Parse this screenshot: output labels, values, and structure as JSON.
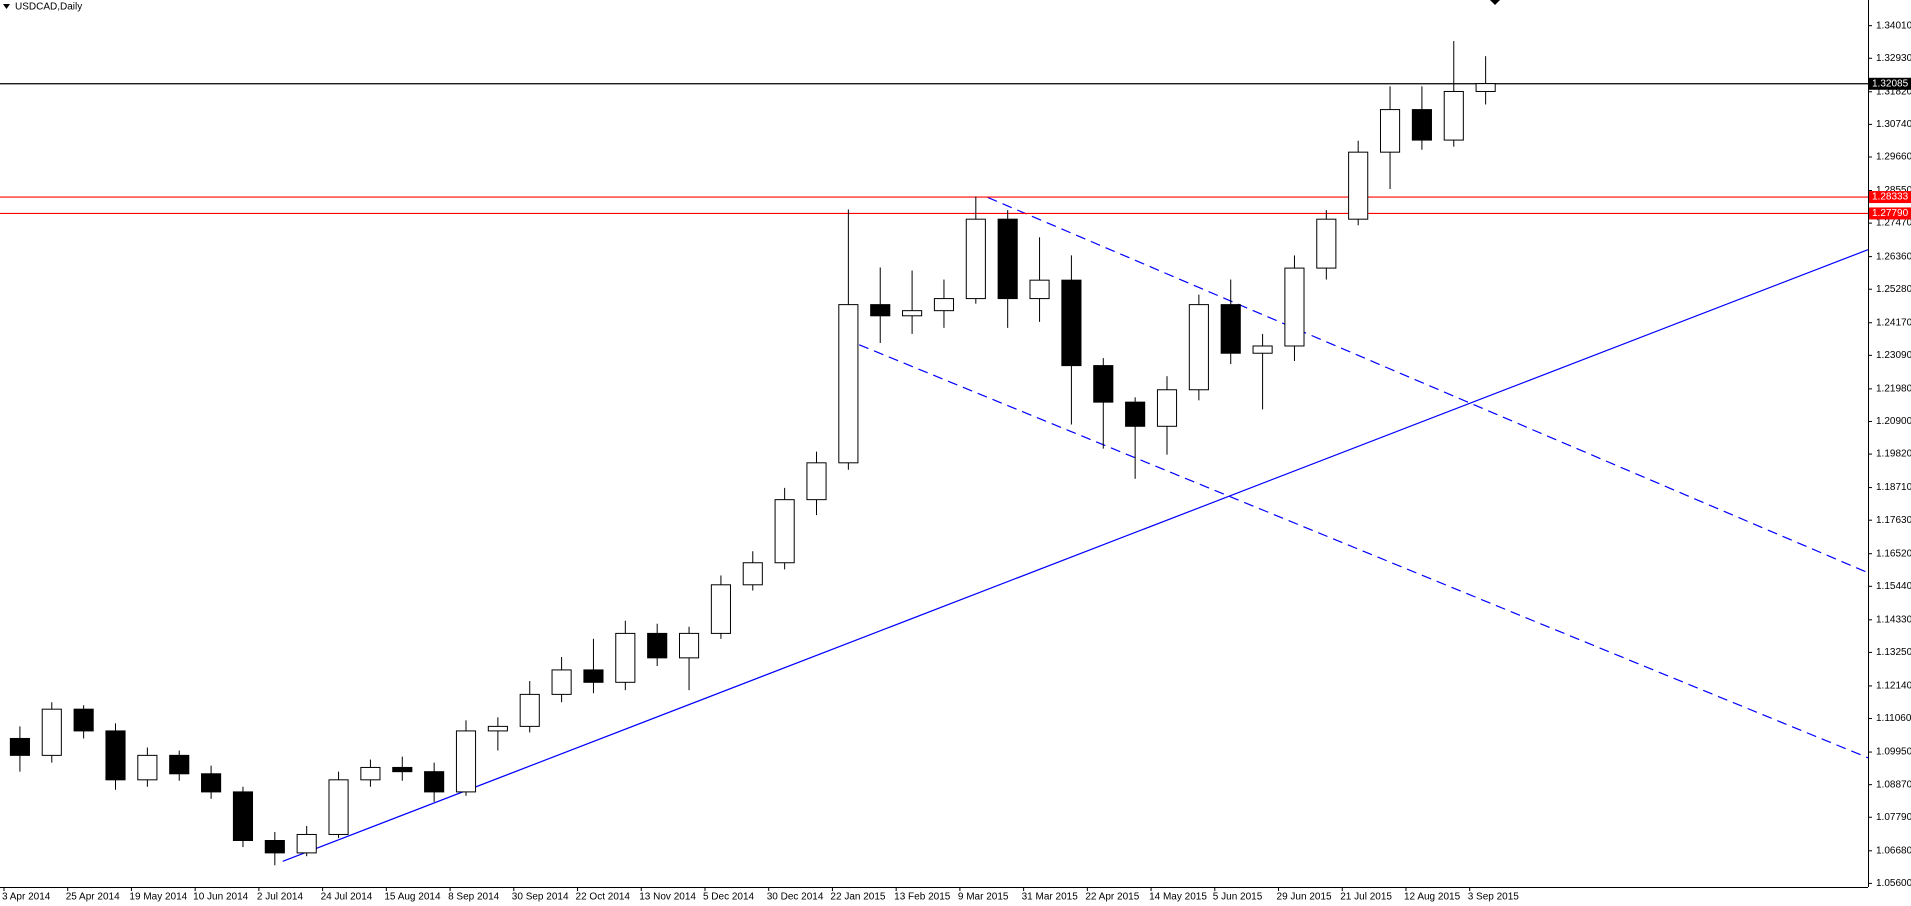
{
  "chart_data": {
    "type": "candlestick",
    "title": "USDCAD,Daily",
    "x": [
      4,
      12,
      20,
      28,
      36,
      44,
      52,
      60,
      68,
      76,
      84,
      92,
      100,
      108,
      116,
      124,
      132,
      140,
      148,
      156,
      164,
      172,
      180,
      188,
      196,
      204,
      212,
      220,
      228,
      236,
      244,
      252,
      260,
      268,
      276,
      284,
      292,
      300,
      308,
      316,
      324,
      332,
      340,
      348,
      356,
      364,
      372
    ],
    "open": [
      1.104,
      1.0984,
      1.1137,
      1.1065,
      1.0903,
      1.0984,
      1.0923,
      1.0863,
      1.0702,
      1.0661,
      1.0722,
      1.0903,
      1.0944,
      1.093,
      1.0863,
      1.1065,
      1.108,
      1.1186,
      1.1267,
      1.1226,
      1.1388,
      1.1307,
      1.1388,
      1.1549,
      1.1622,
      1.1831,
      1.1953,
      1.2477,
      1.244,
      1.2457,
      1.2497,
      1.276,
      1.2497,
      1.2558,
      1.2275,
      1.2154,
      1.2074,
      1.2195,
      1.2477,
      1.2316,
      1.234,
      1.2598,
      1.276,
      1.2982,
      1.3123,
      1.3022,
      1.3183
    ],
    "high": [
      1.108,
      1.116,
      1.115,
      1.109,
      1.101,
      1.1,
      1.095,
      1.088,
      1.073,
      1.075,
      1.093,
      1.097,
      1.098,
      1.096,
      1.11,
      1.111,
      1.123,
      1.131,
      1.137,
      1.143,
      1.142,
      1.141,
      1.158,
      1.166,
      1.187,
      1.199,
      1.2792,
      1.26,
      1.259,
      1.256,
      1.2835,
      1.279,
      1.27,
      1.264,
      1.23,
      1.217,
      1.224,
      1.251,
      1.256,
      1.238,
      1.264,
      1.279,
      1.302,
      1.32,
      1.32,
      1.335,
      1.33
    ],
    "low": [
      1.093,
      1.096,
      1.104,
      1.087,
      1.088,
      1.09,
      1.084,
      1.068,
      1.062,
      1.065,
      1.071,
      1.088,
      1.09,
      1.083,
      1.085,
      1.1,
      1.106,
      1.116,
      1.119,
      1.12,
      1.128,
      1.12,
      1.137,
      1.153,
      1.16,
      1.178,
      1.193,
      1.235,
      1.238,
      1.24,
      1.248,
      1.24,
      1.242,
      1.208,
      1.2,
      1.19,
      1.198,
      1.216,
      1.228,
      1.213,
      1.229,
      1.256,
      1.274,
      1.286,
      1.299,
      1.3,
      1.314
    ],
    "close": [
      1.0984,
      1.1137,
      1.1065,
      1.0903,
      1.0984,
      1.0923,
      1.0863,
      1.0702,
      1.0661,
      1.0722,
      1.0903,
      1.0944,
      1.093,
      1.0863,
      1.1065,
      1.108,
      1.1186,
      1.1267,
      1.1226,
      1.1388,
      1.1307,
      1.1388,
      1.1549,
      1.1622,
      1.1831,
      1.1953,
      1.2477,
      1.244,
      1.2457,
      1.2497,
      1.276,
      1.2497,
      1.2558,
      1.2275,
      1.2154,
      1.2074,
      1.2195,
      1.2477,
      1.2316,
      1.234,
      1.2598,
      1.276,
      1.2982,
      1.3123,
      1.3022,
      1.3183,
      1.3209
    ],
    "up_color": "#ffffff",
    "down_color": "#000000",
    "wick_color": "#000000",
    "xlim": [
      -1,
      468
    ],
    "xticks": [
      {
        "value": 0,
        "label": "3 Apr 2014"
      },
      {
        "value": 16,
        "label": "25 Apr 2014"
      },
      {
        "value": 32,
        "label": "19 May 2014"
      },
      {
        "value": 48,
        "label": "10 Jun 2014"
      },
      {
        "value": 64,
        "label": "2 Jul 2014"
      },
      {
        "value": 80,
        "label": "24 Jul 2014"
      },
      {
        "value": 96,
        "label": "15 Aug 2014"
      },
      {
        "value": 112,
        "label": "8 Sep 2014"
      },
      {
        "value": 128,
        "label": "30 Sep 2014"
      },
      {
        "value": 144,
        "label": "22 Oct 2014"
      },
      {
        "value": 160,
        "label": "13 Nov 2014"
      },
      {
        "value": 176,
        "label": "5 Dec 2014"
      },
      {
        "value": 192,
        "label": "30 Dec 2014"
      },
      {
        "value": 208,
        "label": "22 Jan 2015"
      },
      {
        "value": 224,
        "label": "13 Feb 2015"
      },
      {
        "value": 240,
        "label": "9 Mar 2015"
      },
      {
        "value": 256,
        "label": "31 Mar 2015"
      },
      {
        "value": 272,
        "label": "22 Apr 2015"
      },
      {
        "value": 288,
        "label": "14 May 2015"
      },
      {
        "value": 304,
        "label": "5 Jun 2015"
      },
      {
        "value": 320,
        "label": "29 Jun 2015"
      },
      {
        "value": 336,
        "label": "21 Jul 2015"
      },
      {
        "value": 352,
        "label": "12 Aug 2015"
      },
      {
        "value": 368,
        "label": "3 Sep 2015"
      }
    ],
    "ylim": [
      1.0548,
      1.3486
    ],
    "yticks": [
      {
        "value": 1.3401,
        "label": "1.34010"
      },
      {
        "value": 1.3293,
        "label": "1.32930"
      },
      {
        "value": 1.3182,
        "label": "1.31820"
      },
      {
        "value": 1.3074,
        "label": "1.30740"
      },
      {
        "value": 1.2966,
        "label": "1.29660"
      },
      {
        "value": 1.2855,
        "label": "1.28550"
      },
      {
        "value": 1.2747,
        "label": "1.27470"
      },
      {
        "value": 1.2636,
        "label": "1.26360"
      },
      {
        "value": 1.2528,
        "label": "1.25280"
      },
      {
        "value": 1.2417,
        "label": "1.24170"
      },
      {
        "value": 1.2309,
        "label": "1.23090"
      },
      {
        "value": 1.2198,
        "label": "1.21980"
      },
      {
        "value": 1.209,
        "label": "1.20900"
      },
      {
        "value": 1.1982,
        "label": "1.19820"
      },
      {
        "value": 1.1871,
        "label": "1.18710"
      },
      {
        "value": 1.1763,
        "label": "1.17630"
      },
      {
        "value": 1.1652,
        "label": "1.16520"
      },
      {
        "value": 1.1544,
        "label": "1.15440"
      },
      {
        "value": 1.1433,
        "label": "1.14330"
      },
      {
        "value": 1.1325,
        "label": "1.13250"
      },
      {
        "value": 1.1214,
        "label": "1.12140"
      },
      {
        "value": 1.1106,
        "label": "1.11060"
      },
      {
        "value": 1.0995,
        "label": "1.09950"
      },
      {
        "value": 1.0887,
        "label": "1.08870"
      },
      {
        "value": 1.0779,
        "label": "1.07790"
      },
      {
        "value": 1.0668,
        "label": "1.06680"
      },
      {
        "value": 1.056,
        "label": "1.05600"
      }
    ],
    "levels": [
      {
        "price": 1.32085,
        "color": "#000000"
      },
      {
        "price": 1.28333,
        "color": "#ff0000"
      },
      {
        "price": {
          "value": 1.2779,
          "label": "1.27790"
        },
        "color": "#ff0000"
      }
    ],
    "trendlines": [
      {
        "x": [
          70,
          468
        ],
        "y": [
          1.0633,
          1.2659
        ],
        "color": "#0000ff",
        "dashed": false
      },
      {
        "x": [
          247,
          468
        ],
        "y": [
          1.2832,
          1.1589
        ],
        "color": "#0000ff",
        "dashed": true
      },
      {
        "x": [
          211,
          468
        ],
        "y": [
          1.2364,
          1.0976
        ],
        "color": "#0000ff",
        "dashed": true
      }
    ]
  }
}
